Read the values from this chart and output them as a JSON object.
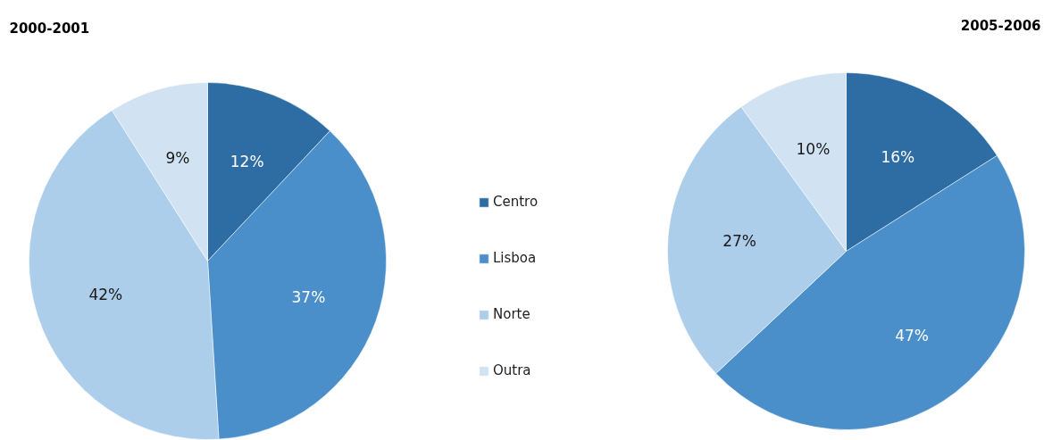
{
  "chart_data": [
    {
      "type": "pie",
      "title": "2000-2001",
      "categories": [
        "Centro",
        "Lisboa",
        "Norte",
        "Outra"
      ],
      "values": [
        12,
        37,
        42,
        9
      ],
      "colors": [
        "#2e6da4",
        "#4a8fca",
        "#acceea",
        "#d1e3f3"
      ],
      "value_labels": [
        "12%",
        "37%",
        "42%",
        "9%"
      ],
      "legend": "right"
    },
    {
      "type": "pie",
      "title": "2005-2006",
      "categories": [
        null,
        null,
        null,
        null
      ],
      "values": [
        16,
        47,
        27,
        10
      ],
      "colors": [
        "#2e6da4",
        "#4a8fca",
        "#acceea",
        "#d1e3f3"
      ],
      "value_labels": [
        "16%",
        "47%",
        "27%",
        "10%"
      ]
    }
  ]
}
